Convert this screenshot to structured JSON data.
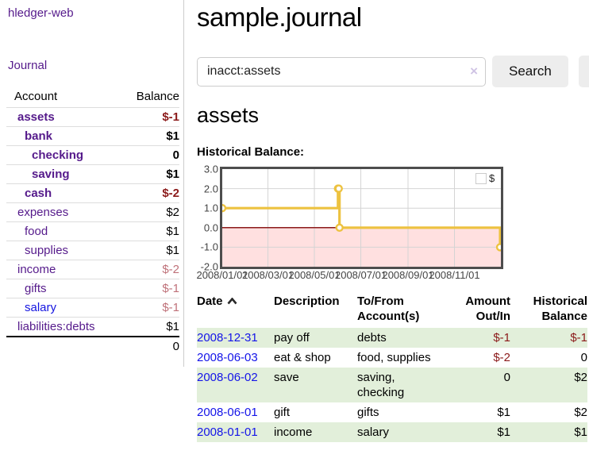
{
  "app": {
    "brand": "hledger-web"
  },
  "sidebar": {
    "nav": {
      "journal": "Journal"
    },
    "accounts": {
      "headers": {
        "account": "Account",
        "balance": "Balance"
      },
      "rows": [
        {
          "account": "assets",
          "balance": "$-1"
        },
        {
          "account": "bank",
          "balance": "$1"
        },
        {
          "account": "checking",
          "balance": "0"
        },
        {
          "account": "saving",
          "balance": "$1"
        },
        {
          "account": "cash",
          "balance": "$-2"
        },
        {
          "account": "expenses",
          "balance": "$2"
        },
        {
          "account": "food",
          "balance": "$1"
        },
        {
          "account": "supplies",
          "balance": "$1"
        },
        {
          "account": "income",
          "balance": "$-2"
        },
        {
          "account": "gifts",
          "balance": "$-1"
        },
        {
          "account": "salary",
          "balance": "$-1"
        },
        {
          "account": "liabilities:debts",
          "balance": "$1"
        }
      ],
      "total": "0"
    }
  },
  "header": {
    "title": "sample.journal"
  },
  "search": {
    "value": "inacct:assets",
    "clear_icon": "×",
    "search_button": "Search",
    "help_button": "?"
  },
  "account_page": {
    "heading": "assets",
    "chart_label": "Historical Balance:"
  },
  "chart_data": {
    "type": "line",
    "step": true,
    "title": "Historical Balance:",
    "series": [
      {
        "name": "$",
        "color": "#edc240",
        "points": [
          [
            "2008-01-01",
            1
          ],
          [
            "2008-06-01",
            2
          ],
          [
            "2008-06-02",
            2
          ],
          [
            "2008-06-03",
            0
          ],
          [
            "2008-12-31",
            -1
          ]
        ]
      }
    ],
    "xrange": [
      "2008-01-01",
      "2009-01-01"
    ],
    "ylim": [
      -2,
      3
    ],
    "ytick_labels": [
      "3.0",
      "2.0",
      "1.0",
      "0.0",
      "-1.0",
      "-2.0"
    ],
    "yticks": [
      3,
      2,
      1,
      0,
      -1,
      -2
    ],
    "xticks": [
      {
        "t": "2008-01-01",
        "label": "2008/01/01"
      },
      {
        "t": "2008-03-01",
        "label": "2008/03/01"
      },
      {
        "t": "2008-05-01",
        "label": "2008/05/01"
      },
      {
        "t": "2008-07-01",
        "label": "2008/07/01"
      },
      {
        "t": "2008-09-01",
        "label": "2008/09/01"
      },
      {
        "t": "2008-11-01",
        "label": "2008/11/01"
      }
    ],
    "grid": true,
    "legend_position": "top-right",
    "negative_region_color": "rgba(255,0,0,0.12)",
    "zero_line_color": "#8b1a1a",
    "border_color": "#4d4d4d",
    "grid_color": "#d4d4d4"
  },
  "register": {
    "headers": {
      "date": "Date",
      "description": "Description",
      "accounts": "To/From Account(s)",
      "amount": "Amount Out/In",
      "balance": "Historical Balance"
    },
    "rows": [
      {
        "date": "2008-12-31",
        "description": "pay off",
        "accounts": "debts",
        "amount": "$-1",
        "balance": "$-1"
      },
      {
        "date": "2008-06-03",
        "description": "eat & shop",
        "accounts": "food, supplies",
        "amount": "$-2",
        "balance": "0"
      },
      {
        "date": "2008-06-02",
        "description": "save",
        "accounts": "saving, checking",
        "amount": "0",
        "balance": "$2"
      },
      {
        "date": "2008-06-01",
        "description": "gift",
        "accounts": "gifts",
        "amount": "$1",
        "balance": "$2"
      },
      {
        "date": "2008-01-01",
        "description": "income",
        "accounts": "salary",
        "amount": "$1",
        "balance": "$1"
      }
    ]
  }
}
